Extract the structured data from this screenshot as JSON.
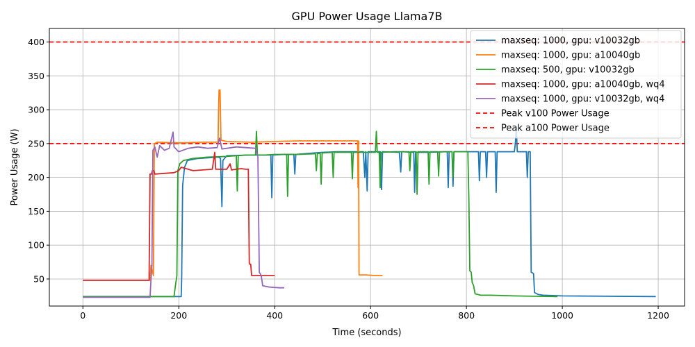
{
  "chart_data": {
    "type": "line",
    "title": "GPU Power Usage Llama7B",
    "xlabel": "Time (seconds)",
    "ylabel": "Power Usage (W)",
    "xlim": [
      -70,
      1255
    ],
    "ylim": [
      10,
      420
    ],
    "xticks": [
      0,
      200,
      400,
      600,
      800,
      1000,
      1200
    ],
    "yticks": [
      50,
      100,
      150,
      200,
      250,
      300,
      350,
      400
    ],
    "grid": true,
    "legend_position": "top-right",
    "series": [
      {
        "name": "maxseq: 1000, gpu: v10032gb",
        "color": "#1f77b4",
        "points": [
          [
            0,
            24
          ],
          [
            150,
            24
          ],
          [
            205,
            24
          ],
          [
            206,
            50
          ],
          [
            208,
            188
          ],
          [
            212,
            215
          ],
          [
            218,
            225
          ],
          [
            240,
            228
          ],
          [
            283,
            230
          ],
          [
            287,
            228
          ],
          [
            290,
            157
          ],
          [
            292,
            225
          ],
          [
            300,
            232
          ],
          [
            350,
            233
          ],
          [
            380,
            233
          ],
          [
            392,
            233
          ],
          [
            394,
            170
          ],
          [
            396,
            233
          ],
          [
            420,
            234
          ],
          [
            440,
            234
          ],
          [
            442,
            205
          ],
          [
            444,
            234
          ],
          [
            480,
            236
          ],
          [
            500,
            237
          ],
          [
            530,
            238
          ],
          [
            560,
            238
          ],
          [
            585,
            238
          ],
          [
            588,
            200
          ],
          [
            590,
            238
          ],
          [
            593,
            180
          ],
          [
            595,
            238
          ],
          [
            620,
            238
          ],
          [
            623,
            182
          ],
          [
            625,
            238
          ],
          [
            660,
            237
          ],
          [
            663,
            208
          ],
          [
            665,
            238
          ],
          [
            690,
            237
          ],
          [
            692,
            178
          ],
          [
            694,
            237
          ],
          [
            720,
            237
          ],
          [
            760,
            238
          ],
          [
            762,
            185
          ],
          [
            764,
            238
          ],
          [
            770,
            238
          ],
          [
            772,
            187
          ],
          [
            774,
            238
          ],
          [
            800,
            238
          ],
          [
            825,
            238
          ],
          [
            827,
            195
          ],
          [
            829,
            238
          ],
          [
            840,
            238
          ],
          [
            842,
            200
          ],
          [
            844,
            238
          ],
          [
            860,
            238
          ],
          [
            862,
            178
          ],
          [
            864,
            238
          ],
          [
            880,
            238
          ],
          [
            900,
            238
          ],
          [
            902,
            250
          ],
          [
            904,
            275
          ],
          [
            906,
            238
          ],
          [
            925,
            238
          ],
          [
            927,
            200
          ],
          [
            929,
            238
          ],
          [
            933,
            238
          ],
          [
            935,
            60
          ],
          [
            940,
            58
          ],
          [
            942,
            30
          ],
          [
            950,
            27
          ],
          [
            960,
            26
          ],
          [
            1000,
            25
          ],
          [
            1195,
            24
          ]
        ]
      },
      {
        "name": "maxseq: 1000, gpu: a10040gb",
        "color": "#ff7f0e",
        "points": [
          [
            0,
            48
          ],
          [
            140,
            48
          ],
          [
            142,
            70
          ],
          [
            145,
            62
          ],
          [
            147,
            55
          ],
          [
            149,
            250
          ],
          [
            155,
            252
          ],
          [
            200,
            251
          ],
          [
            250,
            252
          ],
          [
            282,
            252
          ],
          [
            283,
            300
          ],
          [
            284,
            329
          ],
          [
            286,
            329
          ],
          [
            288,
            255
          ],
          [
            300,
            253
          ],
          [
            350,
            252
          ],
          [
            400,
            253
          ],
          [
            450,
            254
          ],
          [
            500,
            254
          ],
          [
            550,
            254
          ],
          [
            573,
            254
          ],
          [
            574,
            185
          ],
          [
            575,
            254
          ],
          [
            576,
            56
          ],
          [
            590,
            56
          ],
          [
            610,
            55
          ],
          [
            625,
            55
          ]
        ]
      },
      {
        "name": "maxseq: 500, gpu: v10032gb",
        "color": "#2ca02c",
        "points": [
          [
            0,
            24
          ],
          [
            180,
            24
          ],
          [
            190,
            24
          ],
          [
            193,
            40
          ],
          [
            196,
            55
          ],
          [
            198,
            210
          ],
          [
            202,
            220
          ],
          [
            210,
            225
          ],
          [
            230,
            228
          ],
          [
            260,
            230
          ],
          [
            300,
            231
          ],
          [
            320,
            232
          ],
          [
            322,
            180
          ],
          [
            324,
            232
          ],
          [
            340,
            233
          ],
          [
            360,
            233
          ],
          [
            362,
            268
          ],
          [
            364,
            233
          ],
          [
            380,
            233
          ],
          [
            400,
            234
          ],
          [
            425,
            234
          ],
          [
            427,
            172
          ],
          [
            429,
            234
          ],
          [
            450,
            234
          ],
          [
            485,
            235
          ],
          [
            487,
            210
          ],
          [
            489,
            235
          ],
          [
            495,
            236
          ],
          [
            497,
            190
          ],
          [
            499,
            236
          ],
          [
            520,
            237
          ],
          [
            522,
            200
          ],
          [
            524,
            237
          ],
          [
            560,
            237
          ],
          [
            562,
            198
          ],
          [
            564,
            237
          ],
          [
            600,
            237
          ],
          [
            610,
            237
          ],
          [
            612,
            268
          ],
          [
            614,
            237
          ],
          [
            618,
            237
          ],
          [
            620,
            185
          ],
          [
            622,
            237
          ],
          [
            650,
            238
          ],
          [
            680,
            238
          ],
          [
            682,
            210
          ],
          [
            684,
            238
          ],
          [
            695,
            238
          ],
          [
            697,
            175
          ],
          [
            699,
            238
          ],
          [
            720,
            238
          ],
          [
            722,
            190
          ],
          [
            724,
            238
          ],
          [
            740,
            238
          ],
          [
            742,
            202
          ],
          [
            744,
            238
          ],
          [
            770,
            238
          ],
          [
            772,
            200
          ],
          [
            774,
            238
          ],
          [
            800,
            238
          ],
          [
            803,
            238
          ],
          [
            805,
            170
          ],
          [
            807,
            62
          ],
          [
            810,
            60
          ],
          [
            812,
            45
          ],
          [
            815,
            40
          ],
          [
            818,
            28
          ],
          [
            830,
            26
          ],
          [
            850,
            26
          ],
          [
            900,
            25
          ],
          [
            990,
            24
          ]
        ]
      },
      {
        "name": "maxseq: 1000, gpu: a10040gb, wq4",
        "color": "#d62728",
        "points": [
          [
            0,
            48
          ],
          [
            138,
            48
          ],
          [
            140,
            205
          ],
          [
            143,
            205
          ],
          [
            145,
            210
          ],
          [
            148,
            210
          ],
          [
            150,
            205
          ],
          [
            190,
            207
          ],
          [
            200,
            210
          ],
          [
            205,
            215
          ],
          [
            230,
            210
          ],
          [
            250,
            211
          ],
          [
            270,
            212
          ],
          [
            275,
            237
          ],
          [
            277,
            212
          ],
          [
            300,
            212
          ],
          [
            307,
            220
          ],
          [
            310,
            211
          ],
          [
            320,
            212
          ],
          [
            330,
            213
          ],
          [
            340,
            212
          ],
          [
            345,
            212
          ],
          [
            347,
            72
          ],
          [
            350,
            72
          ],
          [
            352,
            55
          ],
          [
            380,
            55
          ],
          [
            400,
            55
          ]
        ]
      },
      {
        "name": "maxseq: 1000, gpu: v10032gb, wq4",
        "color": "#9467bd",
        "points": [
          [
            0,
            23
          ],
          [
            140,
            23
          ],
          [
            142,
            48
          ],
          [
            144,
            70
          ],
          [
            146,
            240
          ],
          [
            150,
            245
          ],
          [
            155,
            230
          ],
          [
            160,
            247
          ],
          [
            170,
            240
          ],
          [
            180,
            243
          ],
          [
            188,
            267
          ],
          [
            190,
            245
          ],
          [
            200,
            238
          ],
          [
            220,
            243
          ],
          [
            240,
            245
          ],
          [
            260,
            243
          ],
          [
            280,
            244
          ],
          [
            285,
            258
          ],
          [
            290,
            242
          ],
          [
            300,
            243
          ],
          [
            320,
            245
          ],
          [
            340,
            244
          ],
          [
            360,
            243
          ],
          [
            365,
            230
          ],
          [
            368,
            60
          ],
          [
            372,
            55
          ],
          [
            375,
            40
          ],
          [
            390,
            38
          ],
          [
            410,
            37
          ],
          [
            420,
            37
          ]
        ]
      }
    ],
    "reference_lines": [
      {
        "name": "Peak v100 Power Usage",
        "y": 400,
        "color": "#ff0000",
        "style": "dashed"
      },
      {
        "name": "Peak a100 Power Usage",
        "y": 250,
        "color": "#ff0000",
        "style": "dashed"
      }
    ]
  }
}
